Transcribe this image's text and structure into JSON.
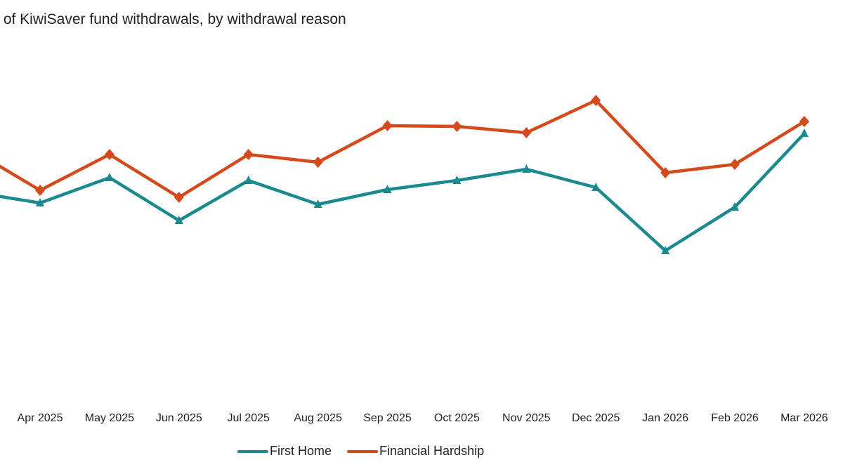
{
  "chart_data": {
    "type": "line",
    "title": "r of KiwiSaver fund withdrawals, by withdrawal reason",
    "xlabel": "",
    "ylabel": "",
    "y_axis_visible": false,
    "y_units_note": "relative index (no y-axis shown)",
    "ylim": [
      0,
      100
    ],
    "grid": false,
    "legend_position": "bottom",
    "categories": [
      "",
      "Apr 2025",
      "May 2025",
      "Jun 2025",
      "Jul 2025",
      "Aug 2025",
      "Sep 2025",
      "Oct 2025",
      "Nov 2025",
      "Dec 2025",
      "Jan 2026",
      "Feb 2026",
      "Mar 2026"
    ],
    "series": [
      {
        "name": "First Home",
        "color": "#1a8a8f",
        "marker": "triangle",
        "values": [
          59.4,
          56.2,
          63.4,
          51.2,
          62.6,
          55.8,
          60.0,
          62.6,
          65.8,
          60.6,
          42.6,
          55.0,
          76.0
        ]
      },
      {
        "name": "Financial Hardship",
        "color": "#d44a1c",
        "marker": "diamond",
        "values": [
          71.6,
          59.8,
          70.0,
          57.8,
          70.0,
          67.8,
          78.2,
          78.0,
          76.2,
          85.4,
          64.8,
          67.2,
          79.4
        ]
      }
    ]
  }
}
